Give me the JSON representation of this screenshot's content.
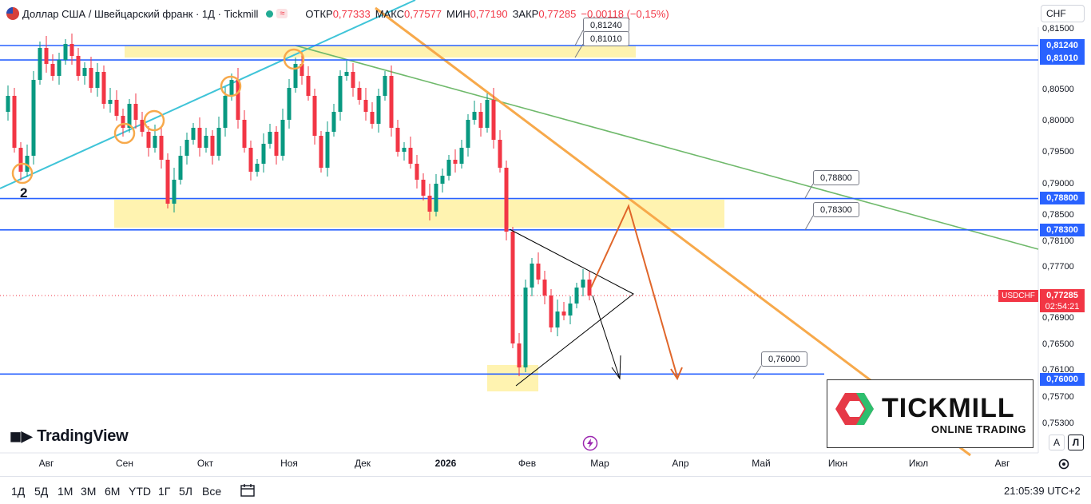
{
  "header": {
    "symbol_title": "Доллар США / Швейцарский франк · 1Д · Tickmill",
    "market_badge": "≈",
    "open_label": "ОТКР",
    "open_value": "0,77333",
    "high_label": "МАКС",
    "high_value": "0,77577",
    "low_label": "МИН",
    "low_value": "0,77190",
    "close_label": "ЗАКР",
    "close_value": "0,77285",
    "change_value": "−0,00118 (−0,15%)"
  },
  "currency_selector": "CHF",
  "price_axis": {
    "labels": [
      "0,81500",
      "0,80500",
      "0,80000",
      "0,79500",
      "0,79000",
      "0,78500",
      "0,78100",
      "0,77700",
      "0,76900",
      "0,76500",
      "0,76100",
      "0,75700",
      "0,75300"
    ],
    "level_tags": [
      "0,81240",
      "0,81010",
      "0,78800",
      "0,78300",
      "0,76000"
    ],
    "last_price_tag": "0,77285",
    "countdown": "02:54:21",
    "symbol_tag": "USDCHF"
  },
  "callouts": [
    "0,81240",
    "0,81010",
    "0,78800",
    "0,78300",
    "0,76000"
  ],
  "wave_marker": "2",
  "time_axis": [
    "Авг",
    "Сен",
    "Окт",
    "Ноя",
    "Дек",
    "2026",
    "Фев",
    "Мар",
    "Апр",
    "Май",
    "Июн",
    "Июл",
    "Авг"
  ],
  "toolbar": {
    "timeframes": [
      "1Д",
      "5Д",
      "1М",
      "3М",
      "6М",
      "YTD",
      "1Г",
      "5Л",
      "Все"
    ],
    "clock": "21:05:39 UTC+2",
    "scale_auto": "A",
    "scale_log": "Л"
  },
  "branding": {
    "tradingview": "TradingView",
    "broker": "TICKMILL",
    "broker_sub": "ONLINE TRADING"
  },
  "colors": {
    "up": "#089981",
    "down": "#f23645",
    "level": "#2962ff",
    "zone": "#fff3b0",
    "trend_orange": "#f7a94b",
    "trend_green": "#6fb96b",
    "trend_cyan": "#3fc4d8",
    "arrow": "#e0662a"
  },
  "chart_data": {
    "type": "candlestick",
    "symbol": "USDCHF",
    "timeframe": "1Д",
    "price_levels": [
      0.8124,
      0.8101,
      0.788,
      0.783,
      0.76
    ],
    "last_price": 0.77285,
    "x": [
      "Авг",
      "Сен",
      "Окт",
      "Ноя",
      "Дек",
      "2026",
      "Фев",
      "Мар",
      "Апр",
      "Май",
      "Июн",
      "Июл",
      "Авг"
    ],
    "ylim": [
      0.751,
      0.8176
    ],
    "y_ticks": [
      0.815,
      0.805,
      0.8,
      0.795,
      0.79,
      0.785,
      0.781,
      0.777,
      0.769,
      0.765,
      0.761,
      0.757,
      0.753
    ],
    "projection": {
      "triangle_apex": 0.7733,
      "target_up": 0.7875,
      "target_down": 0.76
    }
  }
}
